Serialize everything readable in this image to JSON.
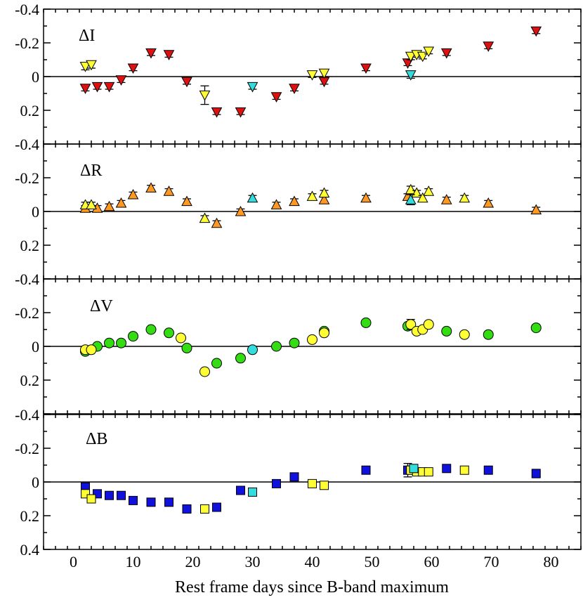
{
  "chart_data": {
    "type": "scatter",
    "xlabel": "Rest frame days since B-band maximum",
    "xlim": [
      -5,
      85
    ],
    "xticks": [
      0,
      10,
      20,
      30,
      40,
      50,
      60,
      70,
      80
    ],
    "xtick_labels": [
      "0",
      "10",
      "20",
      "30",
      "40",
      "50",
      "60",
      "70",
      "80"
    ],
    "yticks": [
      -0.4,
      -0.2,
      0,
      0.2,
      0.4
    ],
    "colors": {
      "red": "#dd1111",
      "yellow": "#ffff33",
      "cyan": "#33dddd",
      "orange": "#ff9922",
      "green": "#33dd11",
      "blue": "#1111dd"
    },
    "panels": [
      {
        "name": "I",
        "label": "ΔI",
        "marker": "triangle-down",
        "ylim": [
          0.4,
          -0.4
        ],
        "ytick_labels": [
          "-0.4",
          "-0.2",
          "0",
          "0.2",
          ""
        ],
        "series": [
          {
            "name": "red",
            "color": "#dd1111",
            "x": [
              2.0,
              4.0,
              6.0,
              8.0,
              10.0,
              13.0,
              16.0,
              19.0,
              24.0,
              28.0,
              34.0,
              37.0,
              42.0,
              49.0,
              56.0,
              62.5,
              69.5,
              77.5
            ],
            "y": [
              0.07,
              0.06,
              0.06,
              0.02,
              -0.05,
              -0.14,
              -0.13,
              0.03,
              0.21,
              0.21,
              0.12,
              0.07,
              0.03,
              -0.05,
              -0.08,
              -0.14,
              -0.18,
              -0.27
            ],
            "err": [
              0.015,
              0.015,
              0.015,
              0.015,
              0.015,
              0.015,
              0.015,
              0.015,
              0.015,
              0.015,
              0.015,
              0.015,
              0.015,
              0.015,
              0.015,
              0.015,
              0.015,
              0.015
            ]
          },
          {
            "name": "yellow",
            "color": "#ffff33",
            "x": [
              2.0,
              3.0,
              22.0,
              40.0,
              42.0,
              56.5,
              57.5,
              58.5,
              59.5
            ],
            "y": [
              -0.06,
              -0.07,
              0.11,
              -0.01,
              -0.02,
              -0.12,
              -0.13,
              -0.12,
              -0.15
            ],
            "err": [
              0.02,
              0.02,
              0.055,
              0.015,
              0.02,
              0.02,
              0.015,
              0.015,
              0.015
            ]
          },
          {
            "name": "cyan",
            "color": "#33dddd",
            "x": [
              30.0,
              56.5
            ],
            "y": [
              0.06,
              -0.01
            ],
            "err": [
              0.015,
              0.02
            ]
          }
        ]
      },
      {
        "name": "R",
        "label": "ΔR",
        "marker": "triangle-up",
        "ylim": [
          0.4,
          -0.4
        ],
        "ytick_labels": [
          "-0.4",
          "-0.2",
          "0",
          "0.2",
          ""
        ],
        "series": [
          {
            "name": "orange",
            "color": "#ff9922",
            "x": [
              2.0,
              4.0,
              6.0,
              8.0,
              10.0,
              13.0,
              16.0,
              19.0,
              24.0,
              28.0,
              34.0,
              37.0,
              42.0,
              49.0,
              56.0,
              62.5,
              69.5,
              77.5
            ],
            "y": [
              -0.02,
              -0.02,
              -0.03,
              -0.05,
              -0.1,
              -0.14,
              -0.12,
              -0.06,
              0.07,
              0.0,
              -0.04,
              -0.06,
              -0.07,
              -0.08,
              -0.09,
              -0.07,
              -0.05,
              -0.01
            ],
            "err": [
              0.015,
              0.015,
              0.015,
              0.015,
              0.015,
              0.015,
              0.015,
              0.015,
              0.015,
              0.015,
              0.015,
              0.015,
              0.015,
              0.015,
              0.015,
              0.015,
              0.015,
              0.015
            ]
          },
          {
            "name": "yellow",
            "color": "#ffff33",
            "x": [
              2.0,
              3.0,
              22.0,
              40.0,
              42.0,
              56.5,
              57.5,
              58.5,
              59.5,
              65.5
            ],
            "y": [
              -0.04,
              -0.04,
              0.04,
              -0.09,
              -0.11,
              -0.13,
              -0.11,
              -0.08,
              -0.12,
              -0.08
            ],
            "err": [
              0.015,
              0.015,
              0.015,
              0.015,
              0.015,
              0.02,
              0.015,
              0.015,
              0.015,
              0.015
            ]
          },
          {
            "name": "cyan",
            "color": "#33dddd",
            "x": [
              30.0,
              56.5
            ],
            "y": [
              -0.08,
              -0.07
            ],
            "err": [
              0.015,
              0.03
            ]
          }
        ]
      },
      {
        "name": "V",
        "label": "ΔV",
        "marker": "circle",
        "ylim": [
          0.4,
          -0.4
        ],
        "ytick_labels": [
          "-0.4",
          "-0.2",
          "0",
          "0.2",
          ""
        ],
        "series": [
          {
            "name": "green",
            "color": "#33dd11",
            "x": [
              2.0,
              4.0,
              6.0,
              8.0,
              10.0,
              13.0,
              16.0,
              19.0,
              24.0,
              28.0,
              34.0,
              37.0,
              42.0,
              49.0,
              56.0,
              62.5,
              69.5,
              77.5
            ],
            "y": [
              0.03,
              0.0,
              -0.02,
              -0.02,
              -0.06,
              -0.1,
              -0.08,
              0.01,
              0.1,
              0.07,
              0.0,
              -0.02,
              -0.09,
              -0.14,
              -0.12,
              -0.09,
              -0.07,
              -0.11
            ],
            "err": [
              0.015,
              0.015,
              0.015,
              0.015,
              0.015,
              0.015,
              0.015,
              0.015,
              0.015,
              0.015,
              0.015,
              0.015,
              0.015,
              0.015,
              0.015,
              0.015,
              0.015,
              0.015
            ]
          },
          {
            "name": "yellow",
            "color": "#ffff33",
            "x": [
              2.0,
              3.0,
              18.0,
              22.0,
              40.0,
              42.0,
              56.5,
              57.5,
              58.5,
              59.5,
              65.5
            ],
            "y": [
              0.02,
              0.02,
              -0.05,
              0.15,
              -0.04,
              -0.08,
              -0.13,
              -0.09,
              -0.1,
              -0.13,
              -0.07
            ],
            "err": [
              0.015,
              0.015,
              0.015,
              0.015,
              0.015,
              0.015,
              0.03,
              0.015,
              0.015,
              0.015,
              0.015
            ]
          },
          {
            "name": "cyan",
            "color": "#33dddd",
            "x": [
              30.0
            ],
            "y": [
              0.02
            ],
            "err": [
              0.015
            ]
          }
        ]
      },
      {
        "name": "B",
        "label": "ΔB",
        "marker": "square",
        "ylim": [
          0.4,
          -0.4
        ],
        "ytick_labels": [
          "-0.4",
          "-0.2",
          "0",
          "0.2",
          "0.4"
        ],
        "series": [
          {
            "name": "blue",
            "color": "#1111dd",
            "x": [
              2.0,
              4.0,
              6.0,
              8.0,
              10.0,
              13.0,
              16.0,
              19.0,
              24.0,
              28.0,
              34.0,
              37.0,
              49.0,
              56.0,
              62.5,
              69.5,
              77.5
            ],
            "y": [
              0.03,
              0.07,
              0.08,
              0.08,
              0.11,
              0.12,
              0.12,
              0.16,
              0.15,
              0.05,
              0.01,
              -0.03,
              -0.07,
              -0.07,
              -0.08,
              -0.07,
              -0.05
            ],
            "err": [
              0.015,
              0.015,
              0.015,
              0.015,
              0.015,
              0.015,
              0.015,
              0.015,
              0.015,
              0.015,
              0.015,
              0.015,
              0.015,
              0.04,
              0.015,
              0.015,
              0.025
            ]
          },
          {
            "name": "yellow",
            "color": "#ffff33",
            "x": [
              2.0,
              3.0,
              22.0,
              40.0,
              42.0,
              56.5,
              57.5,
              58.5,
              59.5,
              65.5
            ],
            "y": [
              0.07,
              0.1,
              0.16,
              0.01,
              0.02,
              -0.07,
              -0.06,
              -0.06,
              -0.06,
              -0.07
            ],
            "err": [
              0.015,
              0.015,
              0.015,
              0.015,
              0.015,
              0.015,
              0.015,
              0.015,
              0.015,
              0.015
            ]
          },
          {
            "name": "cyan",
            "color": "#33dddd",
            "x": [
              30.0,
              57.0
            ],
            "y": [
              0.06,
              -0.08
            ],
            "err": [
              0.015,
              0.02
            ]
          }
        ]
      }
    ]
  }
}
